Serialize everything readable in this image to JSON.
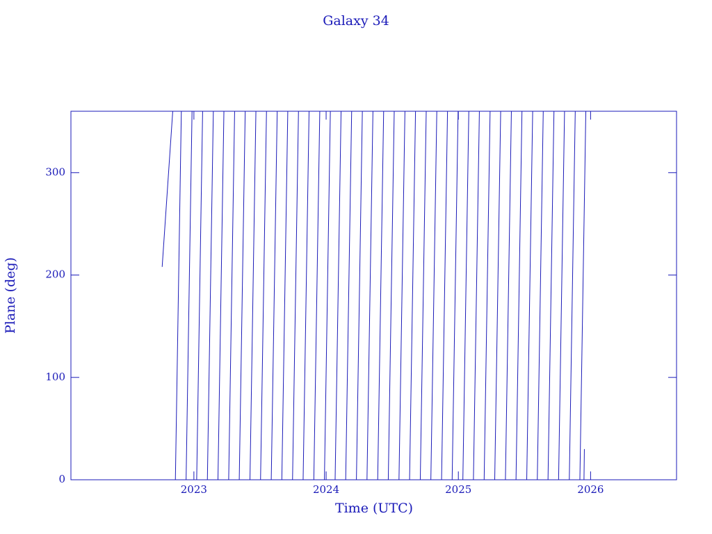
{
  "chart_data": {
    "type": "line",
    "title": "Galaxy 34",
    "x_label": "Time (UTC)",
    "y_label": "Plane (deg)",
    "color": "#1a1ab8",
    "xlim": [
      2022.07,
      2026.65
    ],
    "ylim": [
      0,
      360
    ],
    "xticks": [
      2023,
      2024,
      2025,
      2026
    ],
    "yticks": [
      0,
      100,
      200,
      300
    ],
    "x": [
      2022.76,
      2022.84,
      null,
      2022.86,
      2022.905,
      null,
      2022.941,
      2022.986,
      null,
      2023.021,
      2023.066,
      null,
      2023.102,
      2023.147,
      null,
      2023.182,
      2023.227,
      null,
      2023.263,
      2023.308,
      null,
      2023.343,
      2023.388,
      null,
      2023.424,
      2023.469,
      null,
      2023.504,
      2023.549,
      null,
      2023.585,
      2023.63,
      null,
      2023.665,
      2023.71,
      null,
      2023.746,
      2023.791,
      null,
      2023.826,
      2023.871,
      null,
      2023.907,
      2023.952,
      null,
      2023.987,
      2024.032,
      null,
      2024.068,
      2024.113,
      null,
      2024.148,
      2024.193,
      null,
      2024.229,
      2024.274,
      null,
      2024.309,
      2024.354,
      null,
      2024.39,
      2024.435,
      null,
      2024.47,
      2024.515,
      null,
      2024.551,
      2024.596,
      null,
      2024.631,
      2024.676,
      null,
      2024.712,
      2024.757,
      null,
      2024.792,
      2024.837,
      null,
      2024.873,
      2024.918,
      null,
      2024.953,
      2024.998,
      null,
      2025.034,
      2025.079,
      null,
      2025.114,
      2025.159,
      null,
      2025.195,
      2025.24,
      null,
      2025.275,
      2025.32,
      null,
      2025.356,
      2025.401,
      null,
      2025.436,
      2025.481,
      null,
      2025.517,
      2025.562,
      null,
      2025.597,
      2025.642,
      null,
      2025.678,
      2025.723,
      null,
      2025.758,
      2025.803,
      null,
      2025.839,
      2025.884,
      null,
      2025.919,
      2025.964,
      null,
      2025.95,
      2025.953
    ],
    "values": [
      208,
      360,
      null,
      0,
      360,
      null,
      0,
      360,
      null,
      0,
      360,
      null,
      0,
      360,
      null,
      0,
      360,
      null,
      0,
      360,
      null,
      0,
      360,
      null,
      0,
      360,
      null,
      0,
      360,
      null,
      0,
      360,
      null,
      0,
      360,
      null,
      0,
      360,
      null,
      0,
      360,
      null,
      0,
      360,
      null,
      0,
      360,
      null,
      0,
      360,
      null,
      0,
      360,
      null,
      0,
      360,
      null,
      0,
      360,
      null,
      0,
      360,
      null,
      0,
      360,
      null,
      0,
      360,
      null,
      0,
      360,
      null,
      0,
      360,
      null,
      0,
      360,
      null,
      0,
      360,
      null,
      0,
      360,
      null,
      0,
      360,
      null,
      0,
      360,
      null,
      0,
      360,
      null,
      0,
      360,
      null,
      0,
      360,
      null,
      0,
      360,
      null,
      0,
      360,
      null,
      0,
      360,
      null,
      0,
      360,
      null,
      0,
      360,
      null,
      0,
      360,
      null,
      0,
      360,
      null,
      0,
      30
    ]
  }
}
